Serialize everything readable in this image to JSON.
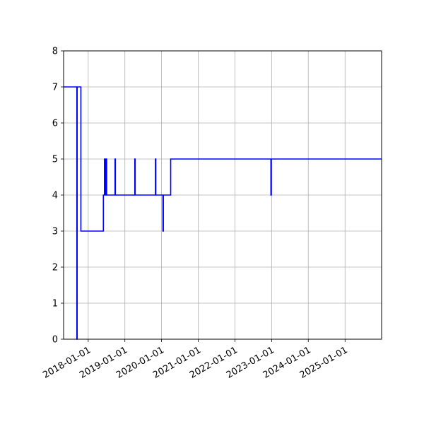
{
  "chart_data": {
    "type": "line",
    "title": "",
    "xlabel": "",
    "ylabel": "",
    "x_axis_type": "date",
    "xlim": [
      "2017-05-01",
      "2025-12-31"
    ],
    "ylim": [
      0,
      8
    ],
    "grid": true,
    "legend": "none",
    "line_style": "steps-post",
    "colors": {
      "line": "#0000ff",
      "grid": "#b0b0b0",
      "axes": "#000000",
      "background": "#ffffff"
    },
    "x_ticks": [
      "2018-01-01",
      "2019-01-01",
      "2020-01-01",
      "2021-01-01",
      "2022-01-01",
      "2023-01-01",
      "2024-01-01",
      "2025-01-01"
    ],
    "x_tick_labels": [
      "2018-01-01",
      "2019-01-01",
      "2020-01-01",
      "2021-01-01",
      "2022-01-01",
      "2023-01-01",
      "2024-01-01",
      "2025-01-01"
    ],
    "y_ticks": [
      0,
      1,
      2,
      3,
      4,
      5,
      6,
      7,
      8
    ],
    "y_tick_labels": [
      "0",
      "1",
      "2",
      "3",
      "4",
      "5",
      "6",
      "7",
      "8"
    ],
    "series": [
      {
        "color": "#0000ff",
        "points": [
          [
            "2017-05-01",
            7
          ],
          [
            "2017-09-10",
            7
          ],
          [
            "2017-09-10",
            0
          ],
          [
            "2017-09-13",
            0
          ],
          [
            "2017-09-13",
            7
          ],
          [
            "2017-10-20",
            7
          ],
          [
            "2017-10-20",
            3
          ],
          [
            "2018-06-01",
            3
          ],
          [
            "2018-06-01",
            4
          ],
          [
            "2018-06-12",
            4
          ],
          [
            "2018-06-12",
            5
          ],
          [
            "2018-06-18",
            5
          ],
          [
            "2018-06-18",
            4
          ],
          [
            "2018-06-24",
            4
          ],
          [
            "2018-06-24",
            5
          ],
          [
            "2018-07-04",
            5
          ],
          [
            "2018-07-04",
            4
          ],
          [
            "2018-09-25",
            4
          ],
          [
            "2018-09-25",
            5
          ],
          [
            "2018-09-29",
            5
          ],
          [
            "2018-09-29",
            4
          ],
          [
            "2019-04-10",
            4
          ],
          [
            "2019-04-10",
            5
          ],
          [
            "2019-04-14",
            5
          ],
          [
            "2019-04-14",
            4
          ],
          [
            "2019-11-01",
            4
          ],
          [
            "2019-11-01",
            5
          ],
          [
            "2019-11-05",
            5
          ],
          [
            "2019-11-05",
            4
          ],
          [
            "2020-01-15",
            4
          ],
          [
            "2020-01-15",
            3
          ],
          [
            "2020-01-19",
            3
          ],
          [
            "2020-01-19",
            4
          ],
          [
            "2020-04-01",
            4
          ],
          [
            "2020-04-01",
            5
          ],
          [
            "2022-12-25",
            5
          ],
          [
            "2022-12-25",
            4
          ],
          [
            "2022-12-29",
            4
          ],
          [
            "2022-12-29",
            5
          ],
          [
            "2025-12-31",
            5
          ]
        ]
      }
    ]
  }
}
